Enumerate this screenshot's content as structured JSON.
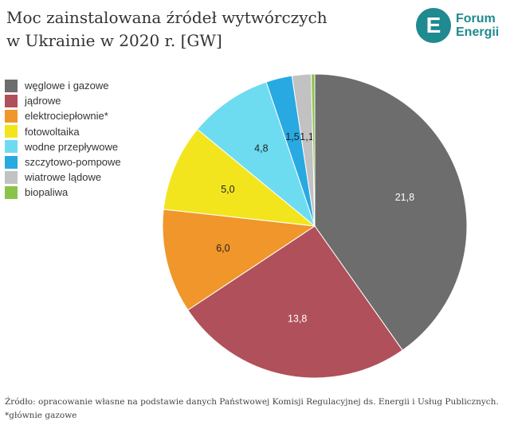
{
  "header": {
    "title_line1": "Moc zainstalowana źródeł wytwórczych",
    "title_line2": "w Ukrainie w 2020 r. [GW]"
  },
  "logo": {
    "symbol": "E",
    "line1": "Forum",
    "line2": "Energii",
    "color": "#1f8a8f"
  },
  "chart_data": {
    "type": "pie",
    "title": "Moc zainstalowana źródeł wytwórczych w Ukrainie w 2020 r. [GW]",
    "legend_position": "left",
    "categories": [
      "węglowe i gazowe",
      "jądrowe",
      "elektrociepłownie*",
      "fotowoltaika",
      "wodne przepływowe",
      "szczytowo-pompowe",
      "wiatrowe lądowe",
      "biopaliwa"
    ],
    "values": [
      21.8,
      13.8,
      6.0,
      5.0,
      4.8,
      1.5,
      1.1,
      0.2
    ],
    "labels": [
      "21,8",
      "13,8",
      "6,0",
      "5,0",
      "4,8",
      "1,5",
      "1,1",
      ""
    ],
    "colors": [
      "#6d6d6d",
      "#b0505a",
      "#f0962a",
      "#f2e51e",
      "#6ddcf0",
      "#28a9e1",
      "#c2c2c2",
      "#8bc34a"
    ]
  },
  "footer": {
    "source": "Źródło: opracowanie własne na podstawie danych Państwowej Komisji Regulacyjnej ds. Energii i Usług Publicznych.",
    "note": "*głównie gazowe"
  }
}
